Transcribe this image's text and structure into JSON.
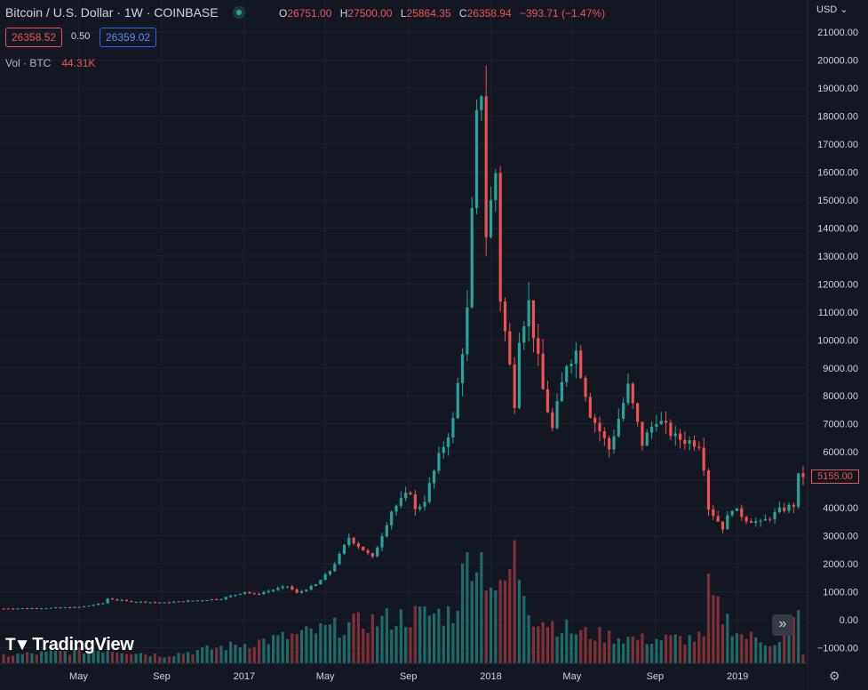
{
  "header": {
    "symbol_title": "Bitcoin / U.S. Dollar · 1W · COINBASE",
    "ohlc": {
      "o_label": "O",
      "o": "26751.00",
      "h_label": "H",
      "h": "27500.00",
      "l_label": "L",
      "l": "25864.35",
      "c_label": "C",
      "c": "26358.94",
      "change": "−393.71 (−1.47%)"
    },
    "sell_price": "26358.52",
    "spread": "0.50",
    "buy_price": "26359.02",
    "volume_label": "Vol · BTC",
    "volume_value": "44.31K"
  },
  "price_scale": {
    "currency": "USD",
    "currency_icon": "chevron-down-icon",
    "last_price": "5155.00"
  },
  "branding": {
    "logo_text": "TradingView"
  },
  "controls": {
    "scroll_icon": "double-chevron-right-icon",
    "settings_icon": "gear-icon"
  },
  "colors": {
    "up": "#26a69a",
    "down": "#ef5350",
    "up_vol": "#1f6b66",
    "down_vol": "#7f3137",
    "background": "#131722",
    "grid": "#1e222d",
    "text": "#d1d4dc"
  },
  "chart_data": {
    "type": "candlestick",
    "interval": "1W",
    "y_ticks": [
      21000,
      20000,
      19000,
      18000,
      17000,
      16000,
      15000,
      14000,
      13000,
      12000,
      11000,
      10000,
      9000,
      8000,
      7000,
      6000,
      5000,
      4000,
      3000,
      2000,
      1000,
      0,
      -1000
    ],
    "y_tick_labels": [
      "21000.00",
      "20000.00",
      "19000.00",
      "18000.00",
      "17000.00",
      "16000.00",
      "15000.00",
      "14000.00",
      "13000.00",
      "12000.00",
      "11000.00",
      "10000.00",
      "9000.00",
      "8000.00",
      "7000.00",
      "6000.00",
      "5000.00",
      "4000.00",
      "3000.00",
      "2000.00",
      "1000.00",
      "0.00",
      "−1000.00"
    ],
    "ylim": [
      -1500,
      22000
    ],
    "x_labels": [
      {
        "label": "May",
        "date": "2016-05"
      },
      {
        "label": "Sep",
        "date": "2016-09"
      },
      {
        "label": "2017",
        "date": "2017-01"
      },
      {
        "label": "May",
        "date": "2017-05"
      },
      {
        "label": "Sep",
        "date": "2017-09"
      },
      {
        "label": "2018",
        "date": "2018-01"
      },
      {
        "label": "May",
        "date": "2018-05"
      },
      {
        "label": "Sep",
        "date": "2018-09"
      },
      {
        "label": "2019",
        "date": "2019-01"
      }
    ],
    "xlim": [
      "2016-01-11",
      "2019-04-08"
    ],
    "close_keyframes": [
      [
        "2016-01-11",
        400
      ],
      [
        "2016-03-07",
        415
      ],
      [
        "2016-05-02",
        450
      ],
      [
        "2016-06-06",
        590
      ],
      [
        "2016-06-13",
        760
      ],
      [
        "2016-07-11",
        660
      ],
      [
        "2016-09-05",
        610
      ],
      [
        "2016-11-28",
        750
      ],
      [
        "2017-01-02",
        1000
      ],
      [
        "2017-01-16",
        900
      ],
      [
        "2017-03-06",
        1200
      ],
      [
        "2017-03-20",
        950
      ],
      [
        "2017-04-17",
        1250
      ],
      [
        "2017-05-08",
        1750
      ],
      [
        "2017-05-22",
        2300
      ],
      [
        "2017-06-05",
        2950
      ],
      [
        "2017-07-10",
        2200
      ],
      [
        "2017-08-07",
        3900
      ],
      [
        "2017-09-04",
        4600
      ],
      [
        "2017-09-11",
        3900
      ],
      [
        "2017-09-25",
        4300
      ],
      [
        "2017-10-16",
        5800
      ],
      [
        "2017-11-06",
        7100
      ],
      [
        "2017-11-27",
        11000
      ],
      [
        "2017-12-11",
        17800
      ],
      [
        "2017-12-18",
        19000
      ],
      [
        "2017-12-25",
        13800
      ],
      [
        "2018-01-08",
        16000
      ],
      [
        "2018-01-15",
        11500
      ],
      [
        "2018-02-05",
        7800
      ],
      [
        "2018-02-12",
        10200
      ],
      [
        "2018-02-26",
        11300
      ],
      [
        "2018-03-19",
        8200
      ],
      [
        "2018-04-02",
        6800
      ],
      [
        "2018-04-23",
        9200
      ],
      [
        "2018-05-07",
        9600
      ],
      [
        "2018-05-28",
        7400
      ],
      [
        "2018-06-25",
        6100
      ],
      [
        "2018-07-23",
        8300
      ],
      [
        "2018-08-13",
        6300
      ],
      [
        "2018-09-03",
        7200
      ],
      [
        "2018-10-01",
        6500
      ],
      [
        "2018-11-05",
        6300
      ],
      [
        "2018-11-12",
        5500
      ],
      [
        "2018-11-19",
        4000
      ],
      [
        "2018-12-10",
        3300
      ],
      [
        "2018-12-24",
        4000
      ],
      [
        "2019-01-14",
        3600
      ],
      [
        "2019-02-04",
        3450
      ],
      [
        "2019-03-04",
        3900
      ],
      [
        "2019-03-25",
        4100
      ],
      [
        "2019-04-01",
        5100
      ],
      [
        "2019-04-08",
        5155
      ]
    ],
    "volume_keyframes": [
      [
        "2016-01-11",
        280
      ],
      [
        "2016-06-13",
        500
      ],
      [
        "2016-09-05",
        280
      ],
      [
        "2017-01-02",
        700
      ],
      [
        "2017-03-20",
        1000
      ],
      [
        "2017-05-22",
        1300
      ],
      [
        "2017-07-10",
        1500
      ],
      [
        "2017-09-11",
        1700
      ],
      [
        "2017-11-06",
        1800
      ],
      [
        "2017-12-04",
        4200
      ],
      [
        "2017-12-18",
        3700
      ],
      [
        "2018-01-15",
        2400
      ],
      [
        "2018-02-05",
        3800
      ],
      [
        "2018-03-05",
        1700
      ],
      [
        "2018-05-07",
        1100
      ],
      [
        "2018-08-13",
        850
      ],
      [
        "2018-11-12",
        900
      ],
      [
        "2018-11-19",
        2500
      ],
      [
        "2018-12-03",
        1900
      ],
      [
        "2019-01-07",
        1000
      ],
      [
        "2019-03-04",
        700
      ],
      [
        "2019-04-01",
        1700
      ],
      [
        "2019-04-08",
        400
      ]
    ]
  }
}
